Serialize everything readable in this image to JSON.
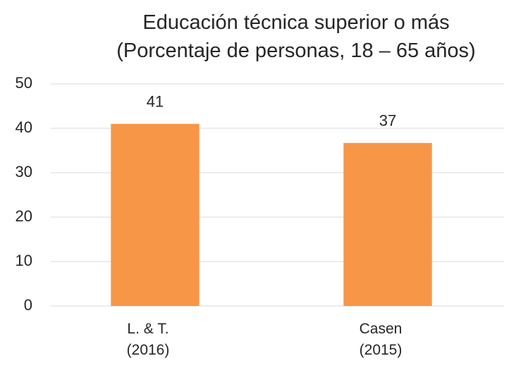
{
  "chart_data": {
    "type": "bar",
    "title": "Educación técnica superior o más\n(Porcentaje de personas, 18 – 65 años)",
    "categories": [
      "L. & T.\n(2016)",
      "Casen\n(2015)"
    ],
    "values": [
      41,
      36.7
    ],
    "value_labels": [
      "41",
      "37"
    ],
    "color": "#f79646",
    "ylim": [
      0,
      50
    ],
    "yticks": [
      0,
      10,
      20,
      30,
      40,
      50
    ],
    "grid": true
  }
}
